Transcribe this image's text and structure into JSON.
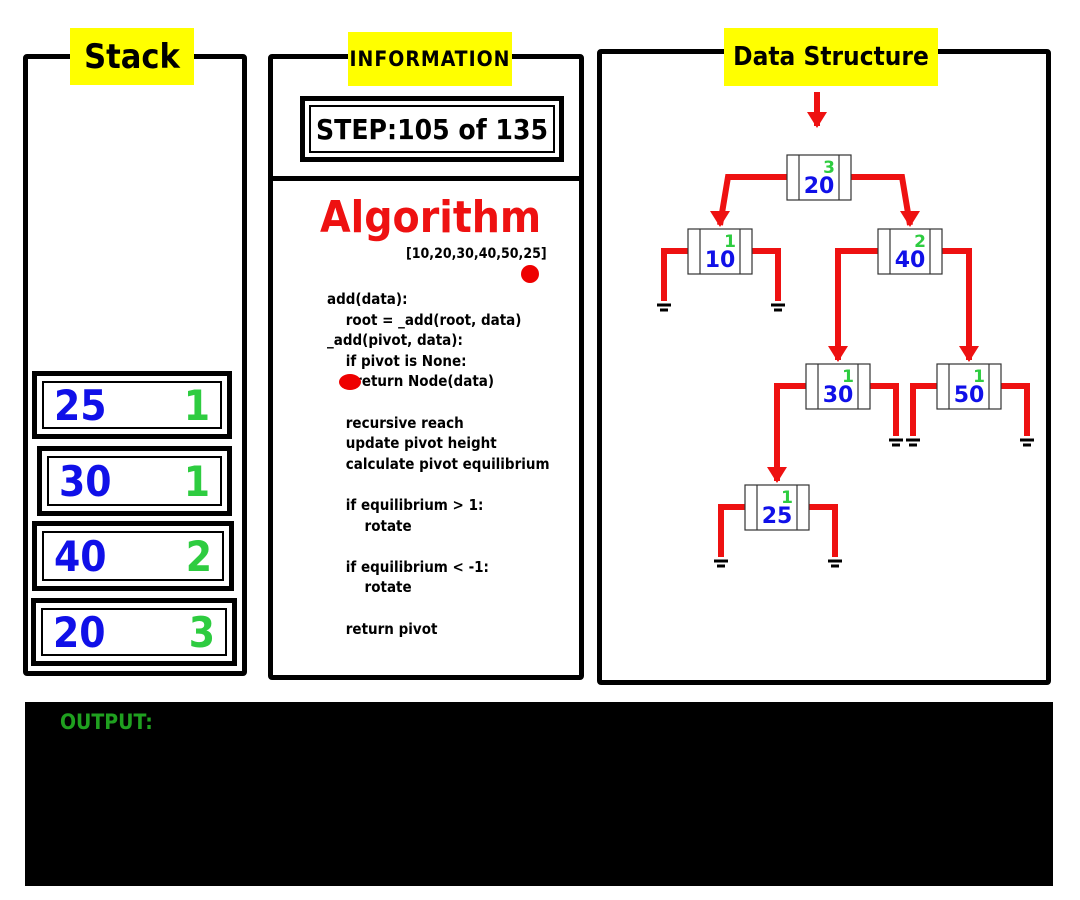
{
  "stack": {
    "title": "Stack",
    "items": [
      {
        "value": "25",
        "height": "1"
      },
      {
        "value": "30",
        "height": "1"
      },
      {
        "value": "40",
        "height": "2"
      },
      {
        "value": "20",
        "height": "3"
      }
    ]
  },
  "info": {
    "title": "INFORMATION",
    "step_label": "STEP:",
    "step_value": "105 of 135",
    "algorithm_heading": "Algorithm",
    "input_list": "[10,20,30,40,50,25]",
    "code_lines": [
      "add(data):",
      "    root = _add(root, data)",
      "_add(pivot, data):",
      "    if pivot is None:",
      "        return Node(data)",
      "",
      "    recursive reach",
      "    update pivot height",
      "    calculate pivot equilibrium",
      "",
      "    if equilibrium > 1:",
      "        rotate",
      "",
      "    if equilibrium < -1:",
      "        rotate",
      "",
      "    return pivot"
    ],
    "current_line_index": 4
  },
  "data_structure": {
    "title": "Data Structure",
    "nodes": [
      {
        "id": "n20",
        "value": "20",
        "height": "3",
        "left": "n10",
        "right": "n40",
        "root": true
      },
      {
        "id": "n10",
        "value": "10",
        "height": "1",
        "left": null,
        "right": null
      },
      {
        "id": "n40",
        "value": "40",
        "height": "2",
        "left": "n30",
        "right": "n50"
      },
      {
        "id": "n30",
        "value": "30",
        "height": "1",
        "left": "n25",
        "right": null
      },
      {
        "id": "n50",
        "value": "50",
        "height": "1",
        "left": null,
        "right": null
      },
      {
        "id": "n25",
        "value": "25",
        "height": "1",
        "left": null,
        "right": null
      }
    ]
  },
  "output": {
    "label": "OUTPUT:",
    "text": ""
  },
  "colors": {
    "title_bg": "#ffff00",
    "value_blue": "#1010e8",
    "height_green": "#2ecc40",
    "pointer_red": "#ee1111",
    "output_green": "#1fa01f"
  }
}
